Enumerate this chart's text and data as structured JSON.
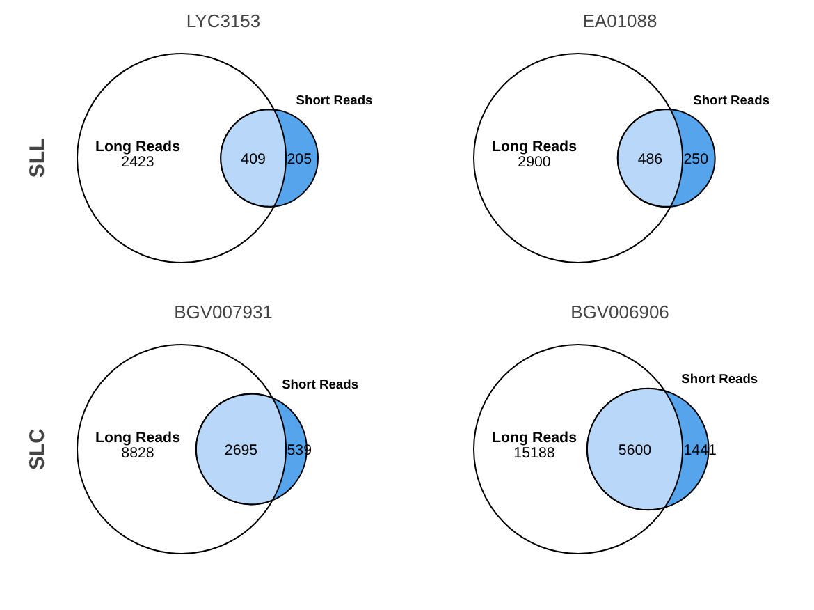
{
  "chart_data": [
    {
      "type": "other",
      "title": "LYC3153",
      "ylabel": "SLL",
      "categories": [
        "Long Reads",
        null,
        "Short Reads"
      ],
      "values": [
        2423,
        409,
        205
      ],
      "data_labels": true,
      "colors": [
        "#ffffff",
        "#b9d7f8",
        "#56a5ec"
      ]
    },
    {
      "type": "other",
      "title": "EA01088",
      "categories": [
        "Long Reads",
        null,
        "Short Reads"
      ],
      "values": [
        2900,
        486,
        250
      ],
      "data_labels": true,
      "colors": [
        "#ffffff",
        "#b9d7f8",
        "#56a5ec"
      ]
    },
    {
      "type": "other",
      "title": "BGV007931",
      "ylabel": "SLC",
      "categories": [
        "Long Reads",
        null,
        "Short Reads"
      ],
      "values": [
        8828,
        2695,
        539
      ],
      "data_labels": true,
      "colors": [
        "#ffffff",
        "#b9d7f8",
        "#56a5ec"
      ]
    },
    {
      "type": "other",
      "title": "BGV006906",
      "categories": [
        "Long Reads",
        null,
        "Short Reads"
      ],
      "values": [
        15188,
        5600,
        1441
      ],
      "data_labels": true,
      "colors": [
        "#ffffff",
        "#b9d7f8",
        "#56a5ec"
      ]
    }
  ]
}
